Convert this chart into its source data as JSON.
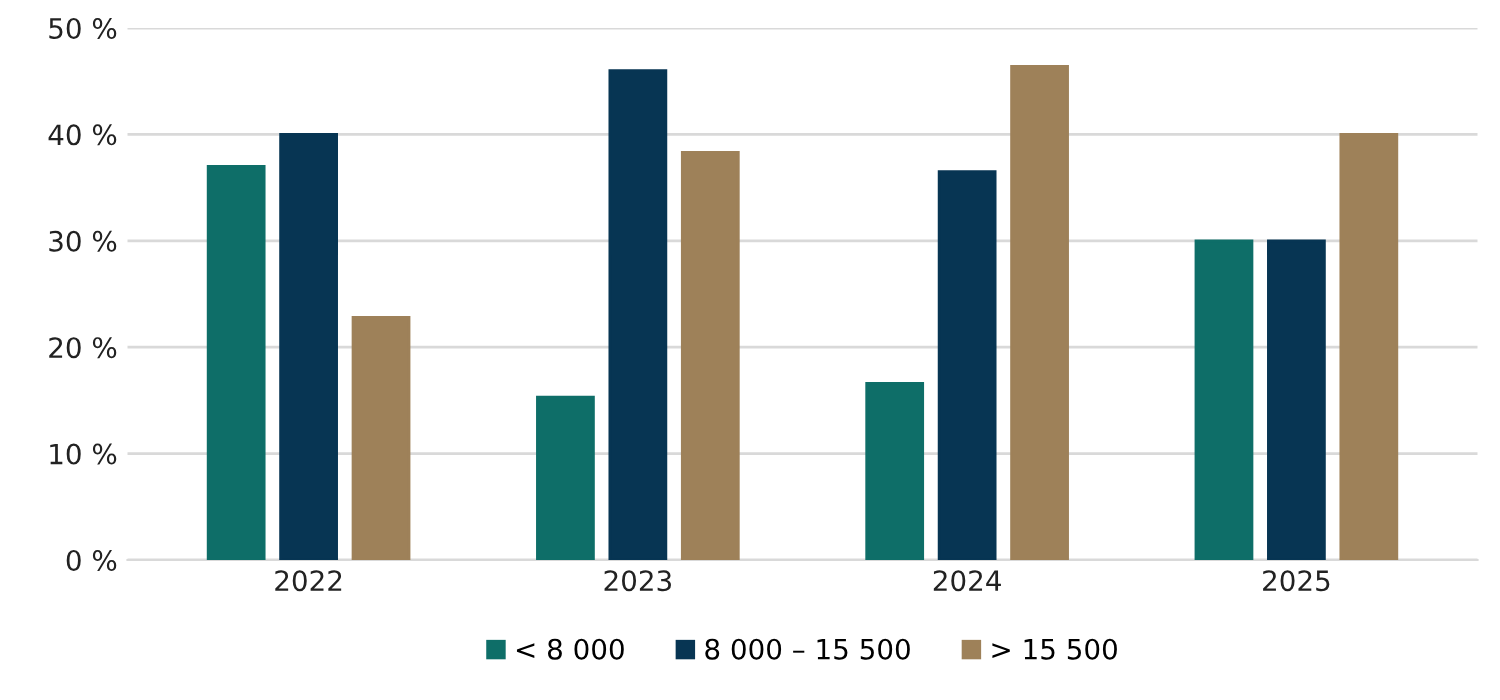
{
  "chart_data": {
    "type": "bar",
    "categories": [
      "2022",
      "2023",
      "2024",
      "2025"
    ],
    "series": [
      {
        "name": "< 8 000",
        "color": "#0e6e68",
        "values": [
          37.0,
          15.3,
          16.6,
          30.0
        ]
      },
      {
        "name": "8 000 – 15 500",
        "color": "#073553",
        "values": [
          40.0,
          46.0,
          36.5,
          30.0
        ]
      },
      {
        "name": "> 15 500",
        "color": "#9e8159",
        "values": [
          22.8,
          38.3,
          46.4,
          40.0
        ]
      }
    ],
    "ylim": [
      0,
      50
    ],
    "yticks": [
      {
        "value": 0,
        "label": "0 %"
      },
      {
        "value": 10,
        "label": "10 %"
      },
      {
        "value": 20,
        "label": "20 %"
      },
      {
        "value": 30,
        "label": "30 %"
      },
      {
        "value": 40,
        "label": "40 %"
      },
      {
        "value": 50,
        "label": "50 %"
      }
    ],
    "grid": "y",
    "legend": "bottom"
  }
}
